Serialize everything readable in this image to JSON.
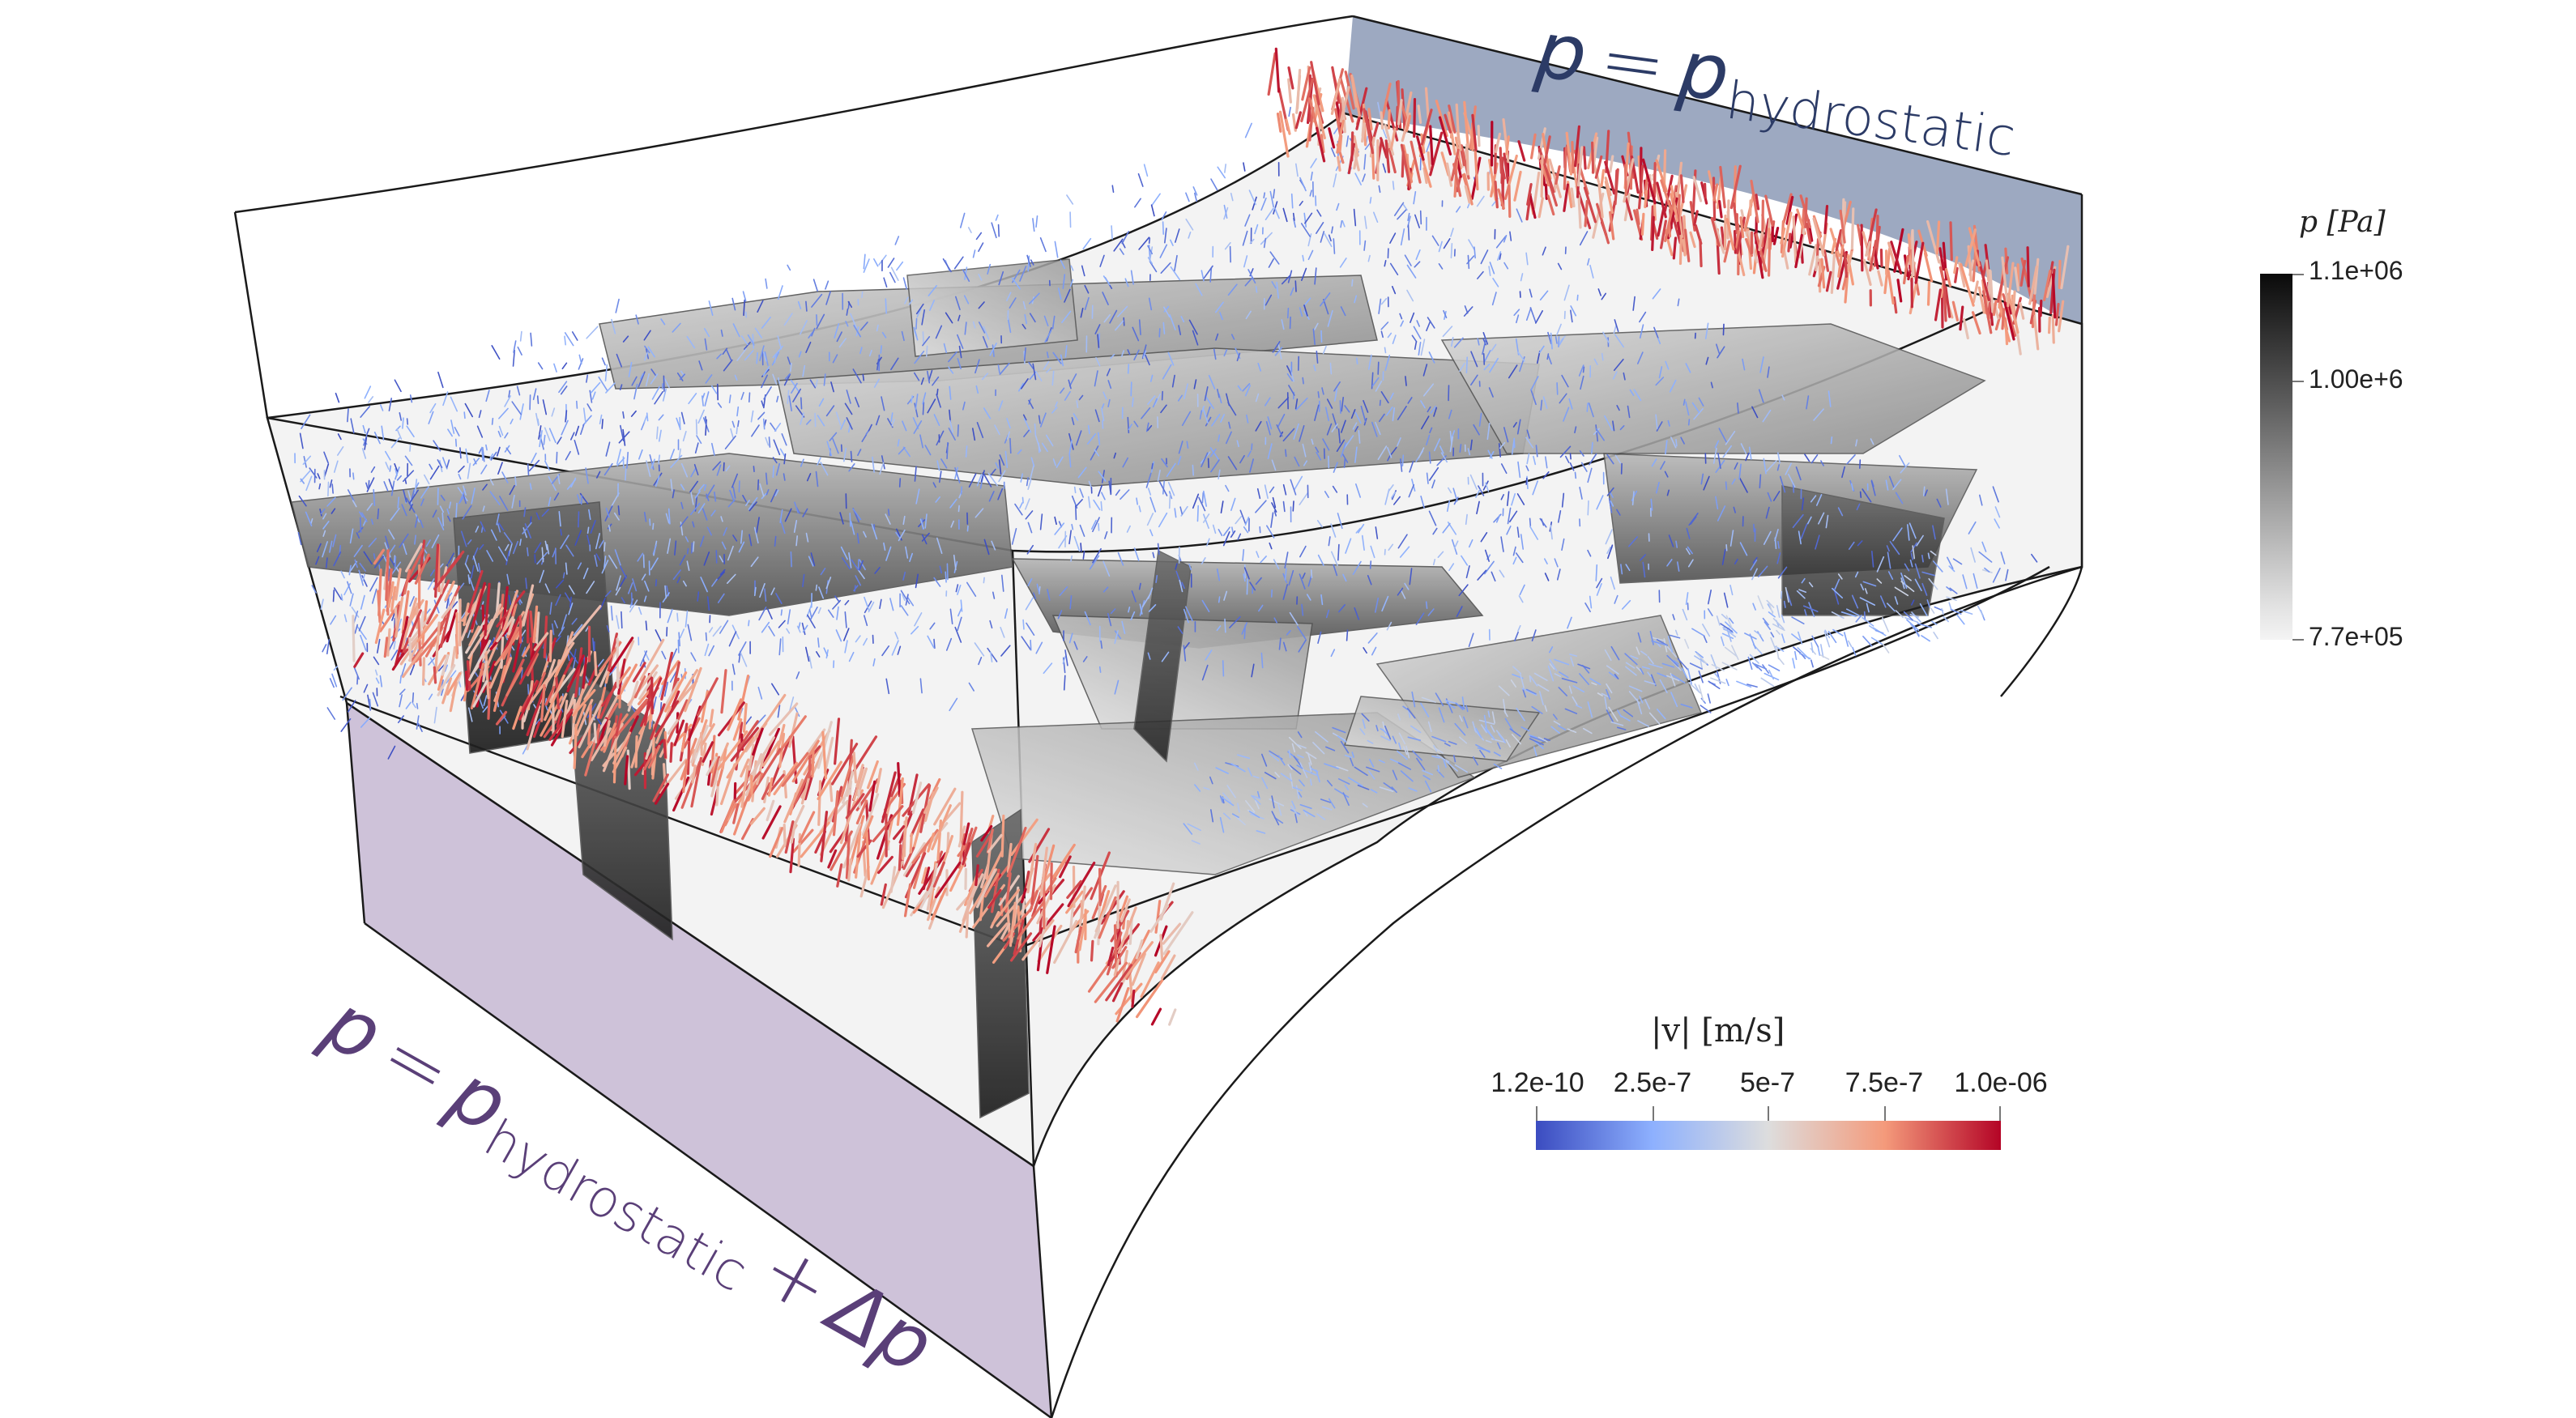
{
  "top_boundary": {
    "symbol": "p",
    "equals": "=",
    "rhs_symbol": "p",
    "rhs_subscript": "hydrostatic",
    "color": "#2c3b66",
    "face_color": "#98a4be"
  },
  "bottom_boundary": {
    "symbol": "p",
    "equals": "=",
    "rhs_symbol": "p",
    "rhs_subscript": "hydrostatic",
    "plus": "+",
    "delta_term": "Δp",
    "color": "#5a3f78",
    "face_color": "#cbbfd7"
  },
  "pressure_colorbar": {
    "title": "p [Pa]",
    "labels": [
      "1.1e+06",
      "1.00e+6",
      "7.7e+05"
    ],
    "colormap": [
      "#0a0a0a",
      "#505050",
      "#9a9a9a",
      "#e0e0e0",
      "#f4f4f4"
    ]
  },
  "velocity_colorbar": {
    "title": "|v| [m/s]",
    "labels": [
      "1.2e-10",
      "2.5e-7",
      "5e-7",
      "7.5e-7",
      "1.0e-06"
    ],
    "colormap": [
      "#3b4cc0",
      "#8db0fe",
      "#dddddd",
      "#f49a7b",
      "#b40426"
    ]
  },
  "colors": {
    "box_edge": "#1a1a1a",
    "fracture_light": "#c2c2c2",
    "fracture_dark": "#4a4a4a",
    "arrow_low": "#5a7fd6",
    "arrow_high": "#b40426"
  }
}
